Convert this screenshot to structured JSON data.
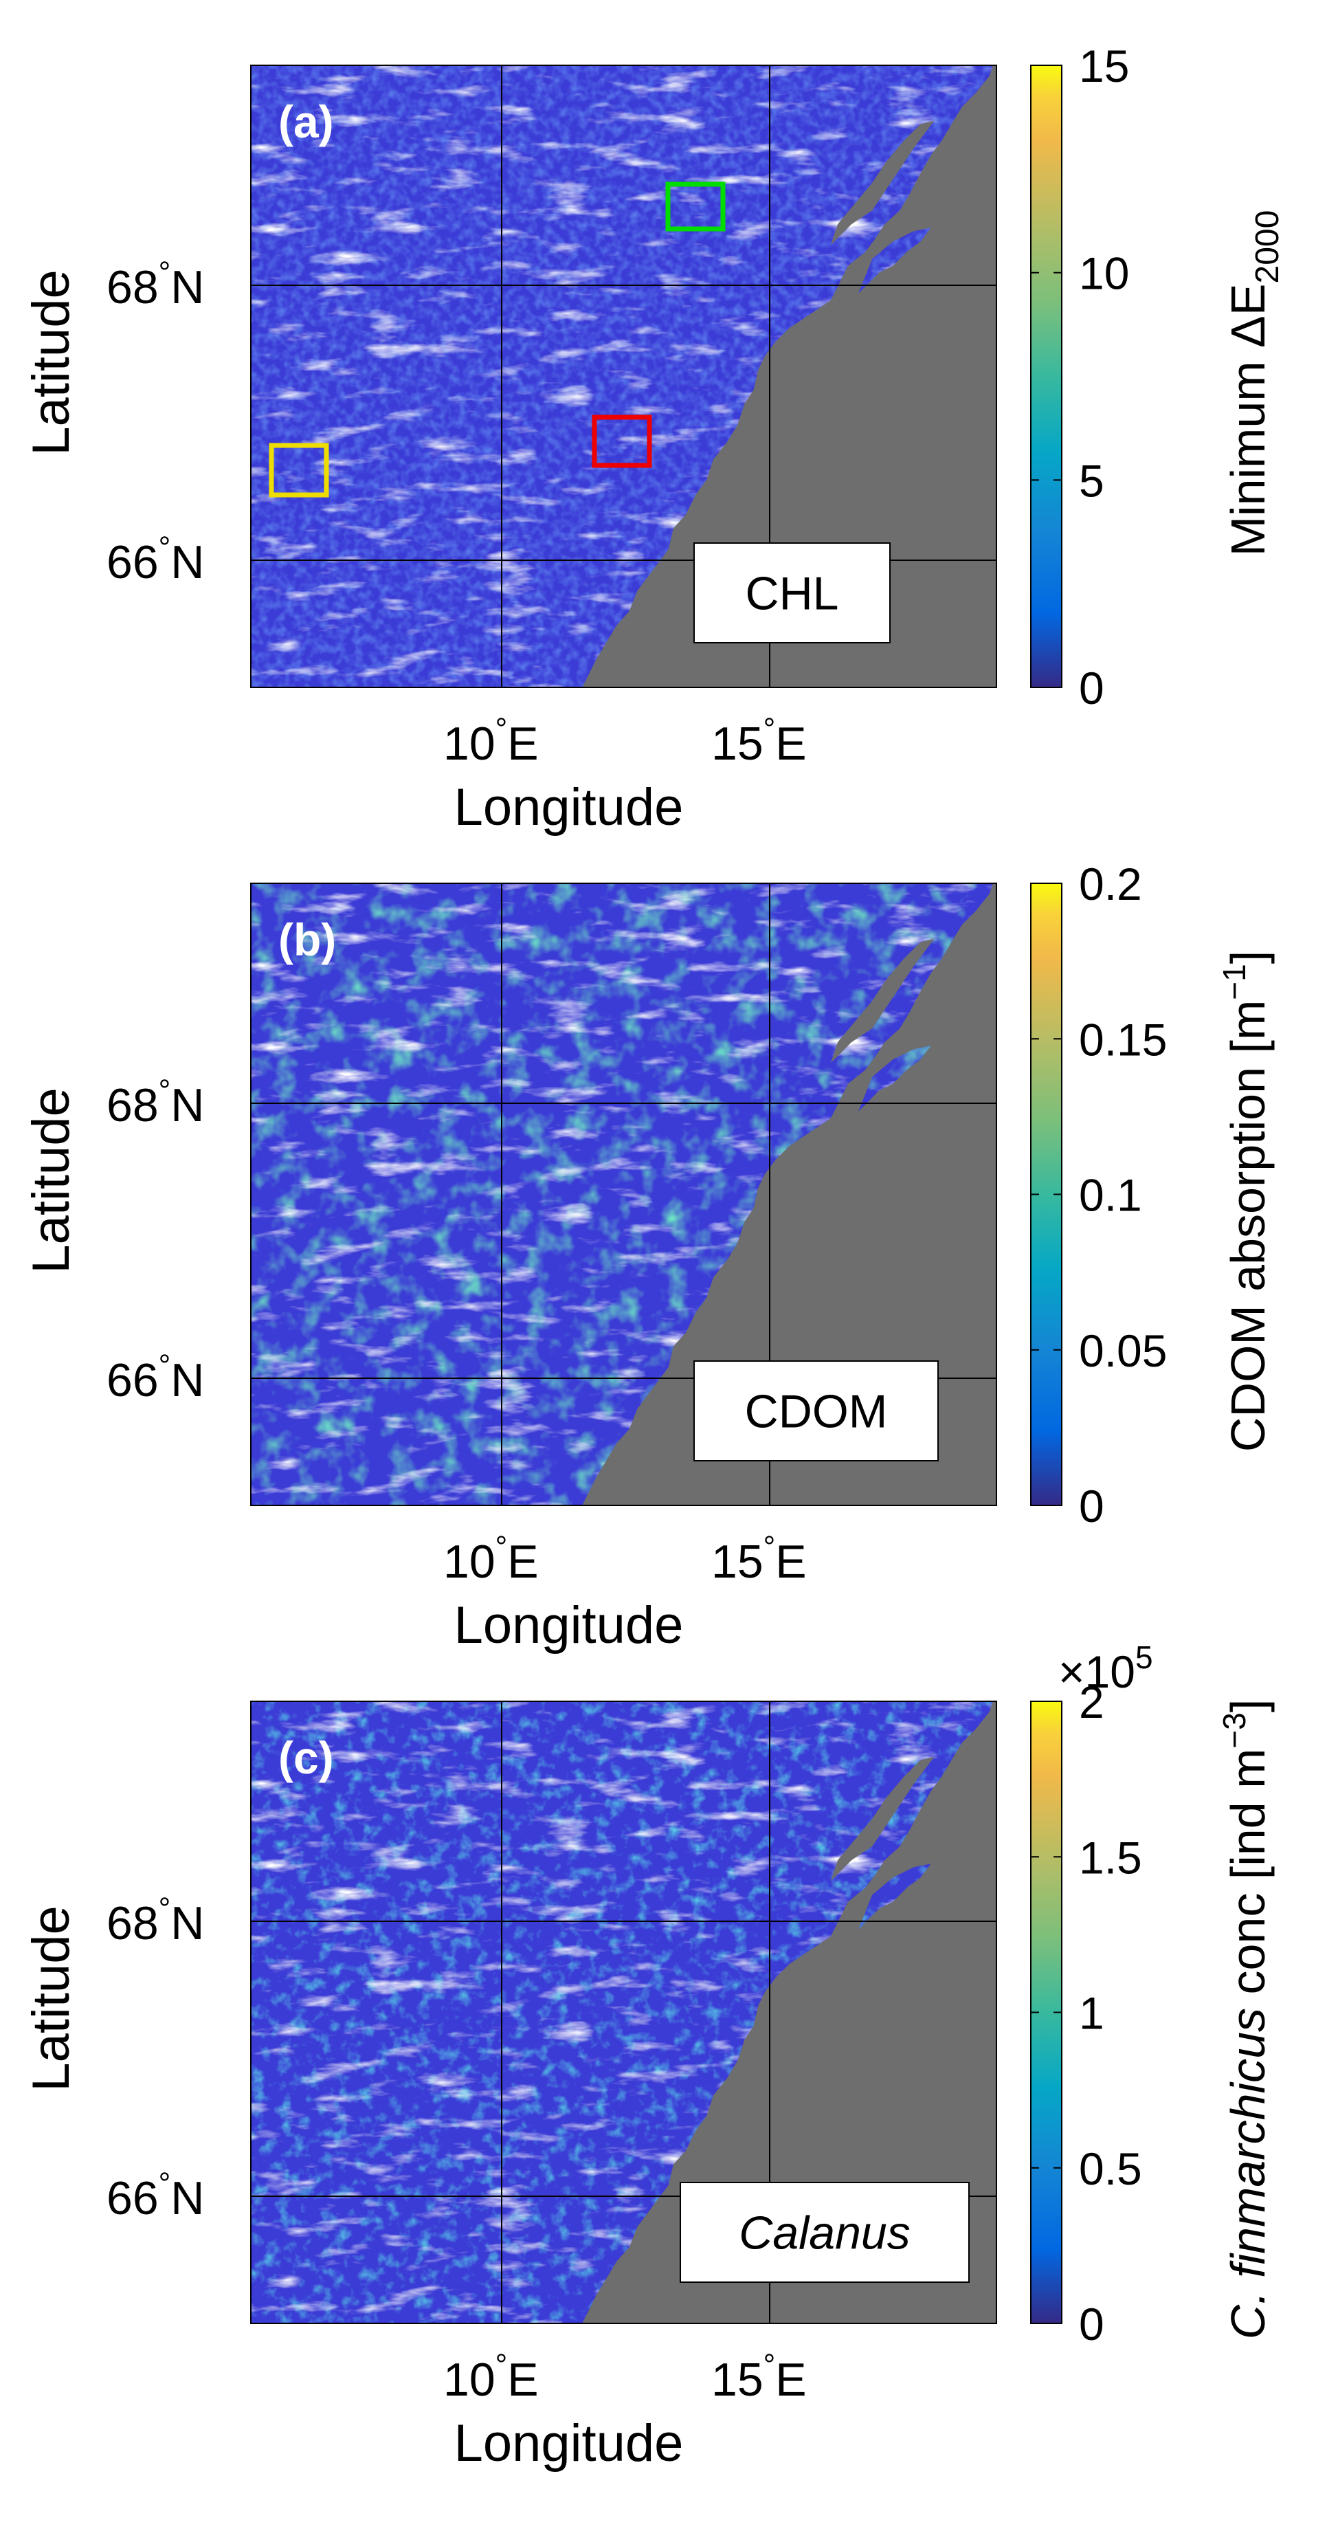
{
  "figure": {
    "panels": [
      {
        "id": "a",
        "panel_label": "(a)",
        "box_label": "CHL",
        "box_label_italic": false,
        "colorbar": {
          "ticks": [
            "0",
            "5",
            "10",
            "15"
          ],
          "label_parts": [
            "Minimum ",
            "ΔE",
            "2000"
          ],
          "multiplier": "",
          "colormap": "parula"
        },
        "field_scale": "low",
        "marker_boxes": [
          {
            "color": "#00dd00"
          },
          {
            "color": "#ee0000"
          },
          {
            "color": "#eedd00"
          }
        ]
      },
      {
        "id": "b",
        "panel_label": "(b)",
        "box_label": "CDOM",
        "box_label_italic": false,
        "colorbar": {
          "ticks": [
            "0",
            "0.05",
            "0.1",
            "0.15",
            "0.2"
          ],
          "label_parts": [
            "CDOM absorption [m",
            "−1",
            "]"
          ],
          "multiplier": "",
          "colormap": "parula"
        },
        "field_scale": "high",
        "marker_boxes": []
      },
      {
        "id": "c",
        "panel_label": "(c)",
        "box_label": "Calanus",
        "box_label_italic": true,
        "colorbar": {
          "ticks": [
            "0",
            "0.5",
            "1",
            "1.5",
            "2"
          ],
          "label_parts": [
            "C. finmarchicus",
            " conc [ind m",
            "−3",
            "]"
          ],
          "multiplier": "×10",
          "multiplier_exp": "5",
          "colormap": "parula"
        },
        "field_scale": "mid",
        "marker_boxes": []
      }
    ],
    "axes": {
      "ylabel": "Latitude",
      "xlabel": "Longitude",
      "yticks": [
        {
          "value": "66",
          "degree": "°",
          "hemi": "N"
        },
        {
          "value": "68",
          "degree": "°",
          "hemi": "N"
        }
      ],
      "xticks": [
        {
          "value": "10",
          "degree": "°",
          "hemi": "E"
        },
        {
          "value": "15",
          "degree": "°",
          "hemi": "E"
        }
      ]
    },
    "colors": {
      "land": "#6e6e6e",
      "cloud": "#ffffff",
      "ocean_base": "#3b3bd6",
      "grid": "#000000"
    }
  }
}
